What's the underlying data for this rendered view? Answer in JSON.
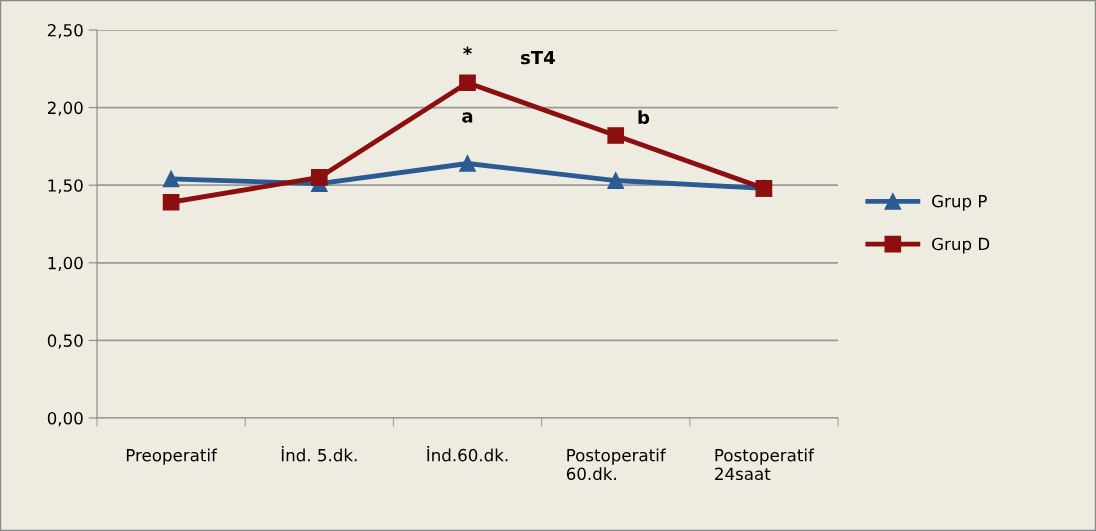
{
  "chart_data": {
    "type": "line",
    "categories": [
      "Preoperatif",
      "İnd. 5.dk.",
      "İnd.60.dk.",
      "Postoperatif\n60.dk.",
      "Postoperatif\n24saat"
    ],
    "series": [
      {
        "name": "Grup P",
        "color": "#2a5b94",
        "marker": "triangle",
        "values": [
          1.54,
          1.51,
          1.64,
          1.53,
          1.48
        ]
      },
      {
        "name": "Grup D",
        "color": "#8b0f0f",
        "marker": "square",
        "values": [
          1.39,
          1.55,
          2.16,
          1.82,
          1.48
        ]
      }
    ],
    "ylim": [
      0,
      2.5
    ],
    "yticks": [
      {
        "value": 0,
        "label": "0,00"
      },
      {
        "value": 0.5,
        "label": "0,50"
      },
      {
        "value": 1,
        "label": "1,00"
      },
      {
        "value": 1.5,
        "label": "1,50"
      },
      {
        "value": 2,
        "label": "2,00"
      },
      {
        "value": 2.5,
        "label": "2,50"
      }
    ],
    "grid": "y",
    "legend": "right",
    "annotations": [
      {
        "text": "*",
        "x": "İnd.60.dk.",
        "y": 2.16
      },
      "sT4",
      {
        "text": "a",
        "x": "İnd.60.dk.",
        "y": 2.16
      },
      {
        "text": "b",
        "x": "Postoperatif\n60.dk.",
        "y": 1.82
      }
    ]
  }
}
